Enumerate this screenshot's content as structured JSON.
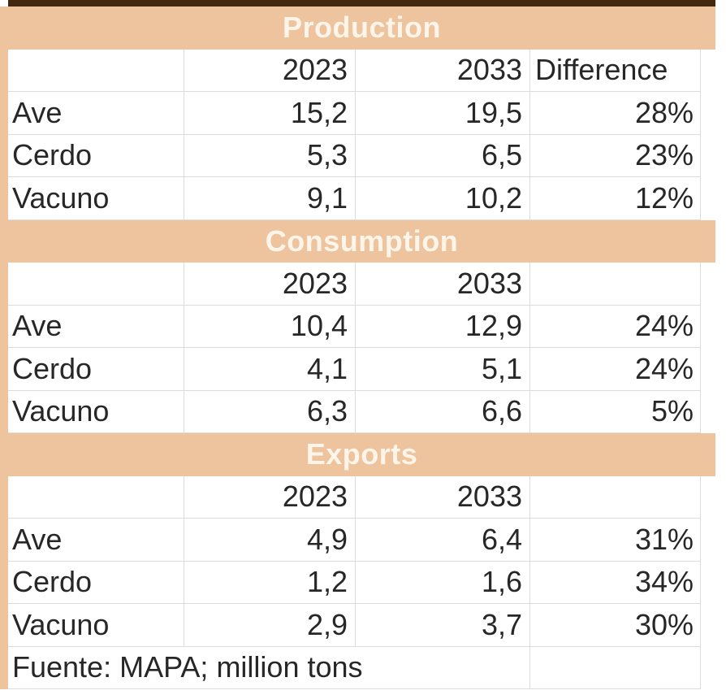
{
  "colors": {
    "accent_band": "#edc49e",
    "band_title_text": "#fdf5e9",
    "top_bar": "#42290e",
    "gridline": "#dcdcdc",
    "cell_text": "#272727",
    "background": "#ffffff"
  },
  "table": {
    "sections": [
      {
        "title": "Production",
        "header": {
          "year_left": "2023",
          "year_right": "2033",
          "diff_label": "Difference"
        },
        "rows": [
          {
            "label": "Ave",
            "v2023": "15,2",
            "v2033": "19,5",
            "diff": "28%"
          },
          {
            "label": "Cerdo",
            "v2023": "5,3",
            "v2033": "6,5",
            "diff": "23%"
          },
          {
            "label": "Vacuno",
            "v2023": "9,1",
            "v2033": "10,2",
            "diff": "12%"
          }
        ]
      },
      {
        "title": "Consumption",
        "header": {
          "year_left": "2023",
          "year_right": "2033",
          "diff_label": ""
        },
        "rows": [
          {
            "label": "Ave",
            "v2023": "10,4",
            "v2033": "12,9",
            "diff": "24%"
          },
          {
            "label": "Cerdo",
            "v2023": "4,1",
            "v2033": "5,1",
            "diff": "24%"
          },
          {
            "label": "Vacuno",
            "v2023": "6,3",
            "v2033": "6,6",
            "diff": "5%"
          }
        ]
      },
      {
        "title": "Exports",
        "header": {
          "year_left": "2023",
          "year_right": "2033",
          "diff_label": ""
        },
        "rows": [
          {
            "label": "Ave",
            "v2023": "4,9",
            "v2033": "6,4",
            "diff": "31%"
          },
          {
            "label": "Cerdo",
            "v2023": "1,2",
            "v2033": "1,6",
            "diff": "34%"
          },
          {
            "label": "Vacuno",
            "v2023": "2,9",
            "v2033": "3,7",
            "diff": "30%"
          }
        ]
      }
    ],
    "footer_note": "Fuente: MAPA; million tons"
  }
}
